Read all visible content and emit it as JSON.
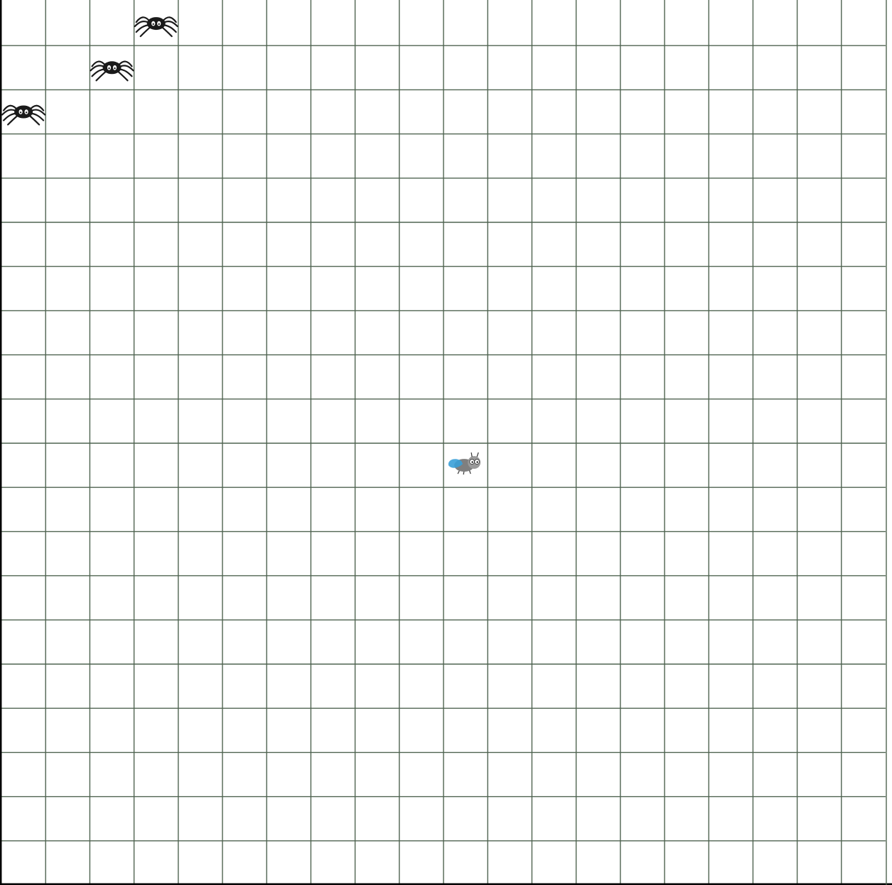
{
  "game": {
    "grid": {
      "columns": 20,
      "rows": 20
    },
    "spiders": [
      {
        "col": 3,
        "row": 0
      },
      {
        "col": 2,
        "row": 1
      },
      {
        "col": 0,
        "row": 2
      }
    ],
    "fly": {
      "col": 10,
      "row": 10
    },
    "colors": {
      "grid_line": "#4f6350",
      "background": "#ffffff",
      "spider": "#1a1a1a",
      "fly_body": "#7f7f7f",
      "fly_wing": "#3aa0d8"
    },
    "icons": {
      "spider": "spider-icon",
      "fly": "fly-icon"
    }
  }
}
